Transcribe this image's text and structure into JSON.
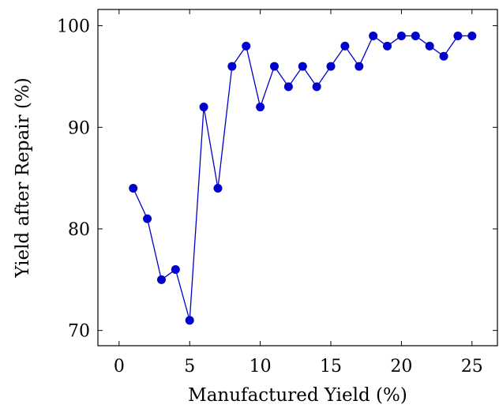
{
  "chart_data": {
    "type": "line",
    "title": "",
    "xlabel": "Manufactured Yield (%)",
    "ylabel": "Yield after Repair (%)",
    "xlim": [
      -1.5,
      26.8
    ],
    "ylim": [
      68.5,
      101.6
    ],
    "xticks": [
      0,
      5,
      10,
      15,
      20,
      25
    ],
    "yticks": [
      70,
      80,
      90,
      100
    ],
    "grid": false,
    "series": [
      {
        "color": "#0000cc",
        "marker": "circle",
        "x": [
          1,
          2,
          3,
          4,
          5,
          6,
          7,
          8,
          9,
          10,
          11,
          12,
          13,
          14,
          15,
          16,
          17,
          18,
          19,
          20,
          21,
          22,
          23,
          24,
          25
        ],
        "y": [
          84,
          81,
          75,
          76,
          71,
          92,
          84,
          96,
          98,
          92,
          96,
          94,
          96,
          94,
          96,
          98,
          96,
          99,
          98,
          99,
          99,
          98,
          97,
          99,
          99
        ]
      }
    ]
  }
}
